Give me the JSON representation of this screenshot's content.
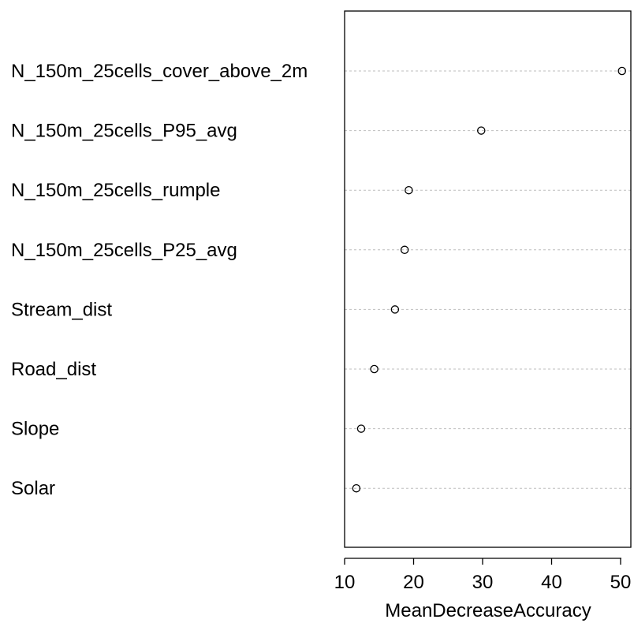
{
  "chart_data": {
    "type": "scatter",
    "variant": "dotchart",
    "categories": [
      "N_150m_25cells_cover_above_2m",
      "N_150m_25cells_P95_avg",
      "N_150m_25cells_rumple",
      "N_150m_25cells_P25_avg",
      "Stream_dist",
      "Road_dist",
      "Slope",
      "Solar"
    ],
    "values": [
      50.2,
      29.8,
      19.3,
      18.7,
      17.3,
      14.3,
      12.4,
      11.7
    ],
    "xlabel": "MeanDecreaseAccuracy",
    "ylabel": "",
    "xlim": [
      10,
      52
    ],
    "xticks": [
      10,
      20,
      30,
      40,
      50
    ],
    "grid": "horizontal-dotted",
    "marker": "open-circle",
    "colors": {
      "marker": "#000000",
      "grid": "#bebebe",
      "frame": "#000000"
    }
  }
}
